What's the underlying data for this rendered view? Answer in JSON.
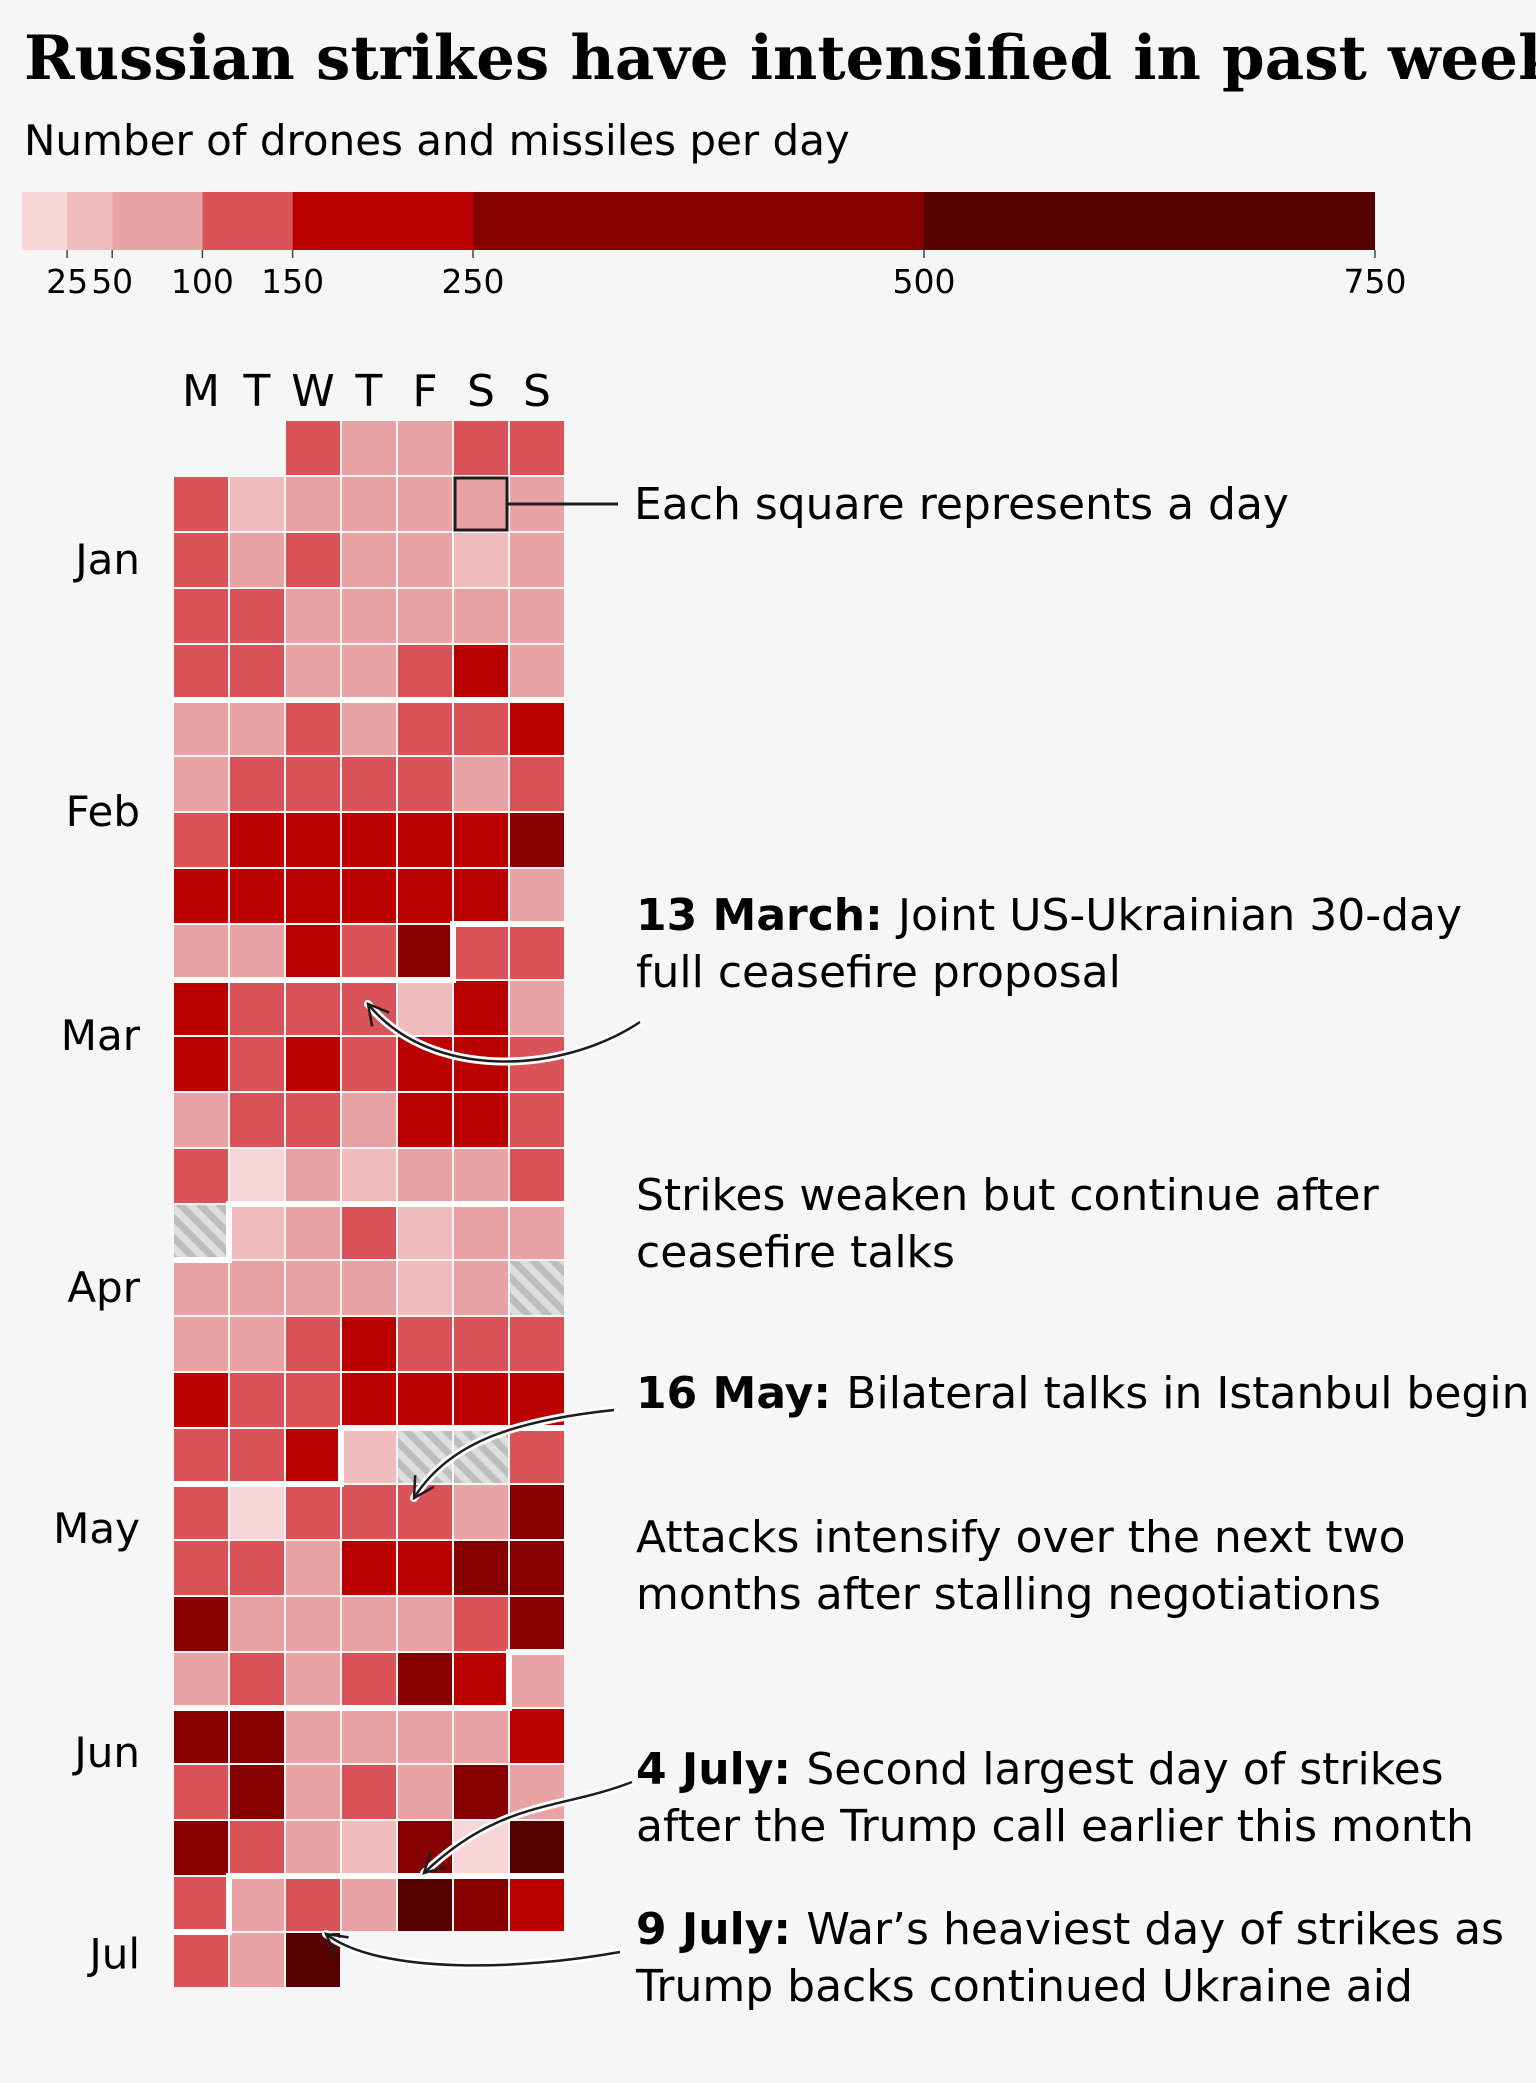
{
  "chart_data": {
    "type": "heatmap",
    "title": "Russian strikes have intensified in past weeks",
    "subtitle": "Number of drones and missiles per day",
    "legend": {
      "breaks": [
        0,
        25,
        50,
        100,
        150,
        250,
        500,
        750
      ],
      "tick_labels": [
        "25",
        "50",
        "100",
        "150",
        "250",
        "500",
        "750"
      ],
      "colors": [
        "#f8d6d8",
        "#f1bcbe",
        "#eaa3a5",
        "#d95358",
        "#bb0000",
        "#870000",
        "#560000"
      ],
      "no_data_pattern": "hatched-grey"
    },
    "day_labels": [
      "M",
      "T",
      "W",
      "T",
      "F",
      "S",
      "S"
    ],
    "months": [
      {
        "label": "Jan",
        "week": 2.5
      },
      {
        "label": "Feb",
        "week": 7
      },
      {
        "label": "Mar",
        "week": 11
      },
      {
        "label": "Apr",
        "week": 15.5
      },
      {
        "label": "May",
        "week": 19.8
      },
      {
        "label": "Jun",
        "week": 23.8
      },
      {
        "label": "Jul",
        "week": 27.4
      }
    ],
    "legend_note": "Each square represents a day",
    "weeks": [
      [
        null,
        null,
        4,
        3,
        3,
        4,
        4
      ],
      [
        4,
        2,
        3,
        3,
        3,
        3,
        3
      ],
      [
        4,
        3,
        4,
        3,
        3,
        2,
        3
      ],
      [
        4,
        4,
        3,
        3,
        3,
        3,
        3
      ],
      [
        4,
        4,
        3,
        3,
        4,
        5,
        3
      ],
      [
        3,
        3,
        4,
        3,
        4,
        4,
        5
      ],
      [
        3,
        4,
        4,
        4,
        4,
        3,
        4
      ],
      [
        4,
        5,
        5,
        5,
        5,
        5,
        6
      ],
      [
        5,
        5,
        5,
        5,
        5,
        5,
        3
      ],
      [
        3,
        3,
        5,
        4,
        6,
        4,
        4
      ],
      [
        5,
        4,
        4,
        4,
        2,
        5,
        3
      ],
      [
        5,
        4,
        5,
        4,
        5,
        5,
        4
      ],
      [
        3,
        4,
        4,
        3,
        5,
        5,
        4
      ],
      [
        4,
        1,
        3,
        2,
        3,
        3,
        4
      ],
      [
        "nd",
        2,
        3,
        4,
        2,
        3,
        3
      ],
      [
        3,
        3,
        3,
        3,
        2,
        3,
        "nd"
      ],
      [
        3,
        3,
        4,
        5,
        4,
        4,
        4
      ],
      [
        5,
        4,
        4,
        5,
        5,
        5,
        5
      ],
      [
        4,
        4,
        5,
        2,
        "nd",
        "nd",
        4
      ],
      [
        4,
        1,
        4,
        4,
        4,
        3,
        6
      ],
      [
        4,
        4,
        3,
        5,
        5,
        6,
        6
      ],
      [
        6,
        3,
        3,
        3,
        3,
        4,
        6
      ],
      [
        3,
        4,
        3,
        4,
        6,
        5,
        3
      ],
      [
        6,
        6,
        3,
        3,
        3,
        3,
        5
      ],
      [
        4,
        6,
        3,
        4,
        3,
        6,
        3
      ],
      [
        6,
        4,
        3,
        2,
        6,
        1,
        7
      ],
      [
        4,
        3,
        4,
        3,
        7,
        6,
        5
      ],
      [
        4,
        3,
        7,
        null,
        null,
        null,
        null
      ]
    ],
    "highlight": {
      "week": 1,
      "day": 5
    },
    "annotations": [
      {
        "bold": "13 March:",
        "lines": [
          "Joint US-Ukrainian 30-day",
          "full ceasefire proposal"
        ],
        "target": {
          "week": 10,
          "day": 3
        }
      },
      {
        "bold": "",
        "lines": [
          "Strikes weaken but continue after",
          "ceasefire talks"
        ],
        "target": null
      },
      {
        "bold": "16 May:",
        "lines": [
          "Bilateral talks in Istanbul begin"
        ],
        "target": {
          "week": 19,
          "day": 4
        }
      },
      {
        "bold": "",
        "lines": [
          "Attacks intensify over the next two",
          "months after stalling negotiations"
        ],
        "target": null
      },
      {
        "bold": "4 July:",
        "lines": [
          "Second largest day of strikes",
          "after the Trump call earlier this month"
        ],
        "target": {
          "week": 26,
          "day": 4
        }
      },
      {
        "bold": "9 July:",
        "lines": [
          "War’s heaviest day of strikes as",
          "Trump backs continued Ukraine aid"
        ],
        "target": {
          "week": 27,
          "day": 2
        }
      }
    ]
  }
}
